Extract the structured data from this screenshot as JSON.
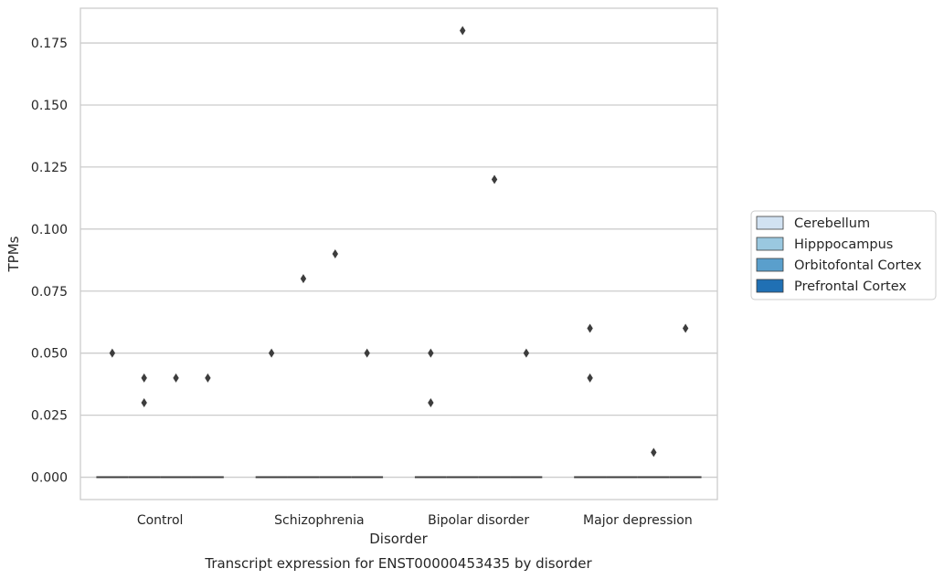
{
  "chart_data": {
    "type": "box",
    "title": "Transcript expression for ENST00000453435 by disorder",
    "xlabel": "Disorder",
    "ylabel": "TPMs",
    "ylim": [
      -0.009,
      0.189
    ],
    "yticks": [
      0.0,
      0.025,
      0.05,
      0.075,
      0.1,
      0.125,
      0.15,
      0.175
    ],
    "ytick_labels": [
      "0.000",
      "0.025",
      "0.050",
      "0.075",
      "0.100",
      "0.125",
      "0.150",
      "0.175"
    ],
    "grid": "horizontal",
    "legend_position": "right-center",
    "categories": [
      "Control",
      "Schizophrenia",
      "Bipolar disorder",
      "Major depression"
    ],
    "series": [
      {
        "name": "Cerebellum",
        "color": "#d1e2f2",
        "median": [
          0,
          0,
          0,
          0
        ],
        "outliers": [
          [
            0.05
          ],
          [
            0.05
          ],
          [
            0.03,
            0.05
          ],
          [
            0.04,
            0.06
          ]
        ]
      },
      {
        "name": "Hipppocampus",
        "color": "#9ac8e0",
        "median": [
          0,
          0,
          0,
          0
        ],
        "outliers": [
          [
            0.03,
            0.04
          ],
          [
            0.08
          ],
          [
            0.18
          ],
          []
        ]
      },
      {
        "name": "Orbitofontal Cortex",
        "color": "#5a9fcc",
        "median": [
          0,
          0,
          0,
          0
        ],
        "outliers": [
          [
            0.04
          ],
          [
            0.09
          ],
          [
            0.12
          ],
          [
            0.01
          ]
        ]
      },
      {
        "name": "Prefrontal Cortex",
        "color": "#2070b4",
        "median": [
          0,
          0,
          0,
          0
        ],
        "outliers": [
          [
            0.04
          ],
          [
            0.05
          ],
          [
            0.05
          ],
          [
            0.06
          ]
        ]
      }
    ]
  }
}
